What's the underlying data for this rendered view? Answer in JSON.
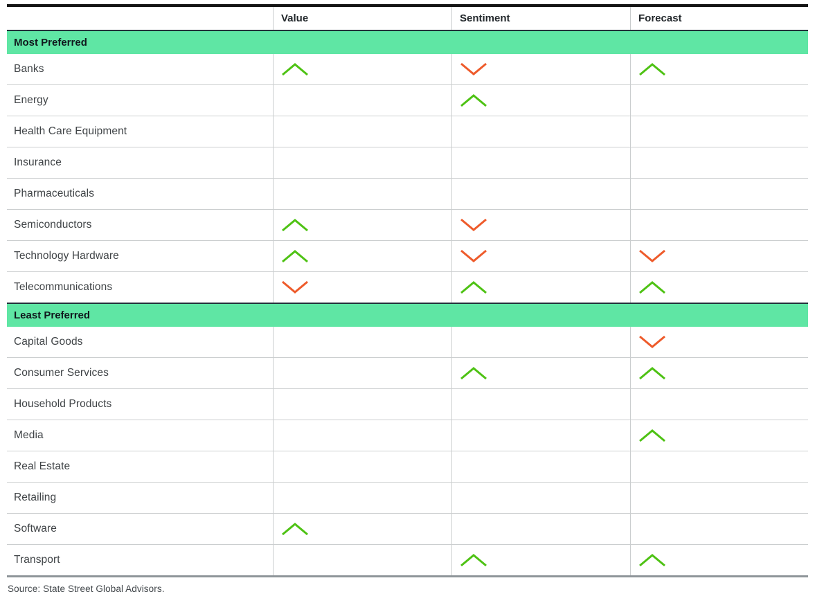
{
  "chart_data": {
    "type": "table",
    "columns": [
      "Value",
      "Sentiment",
      "Forecast"
    ],
    "legend_note": "up = green upward chevron, down = orange downward chevron, null = empty cell",
    "sections": [
      {
        "label": "Most Preferred",
        "rows": [
          {
            "name": "Banks",
            "value": "up",
            "sentiment": "down",
            "forecast": "up"
          },
          {
            "name": "Energy",
            "value": null,
            "sentiment": "up",
            "forecast": null
          },
          {
            "name": "Health Care Equipment",
            "value": null,
            "sentiment": null,
            "forecast": null
          },
          {
            "name": "Insurance",
            "value": null,
            "sentiment": null,
            "forecast": null
          },
          {
            "name": "Pharmaceuticals",
            "value": null,
            "sentiment": null,
            "forecast": null
          },
          {
            "name": "Semiconductors",
            "value": "up",
            "sentiment": "down",
            "forecast": null
          },
          {
            "name": "Technology Hardware",
            "value": "up",
            "sentiment": "down",
            "forecast": "down"
          },
          {
            "name": "Telecommunications",
            "value": "down",
            "sentiment": "up",
            "forecast": "up"
          }
        ]
      },
      {
        "label": "Least Preferred",
        "rows": [
          {
            "name": "Capital Goods",
            "value": null,
            "sentiment": null,
            "forecast": "down"
          },
          {
            "name": "Consumer Services",
            "value": null,
            "sentiment": "up",
            "forecast": "up"
          },
          {
            "name": "Household Products",
            "value": null,
            "sentiment": null,
            "forecast": null
          },
          {
            "name": "Media",
            "value": null,
            "sentiment": null,
            "forecast": "up"
          },
          {
            "name": "Real Estate",
            "value": null,
            "sentiment": null,
            "forecast": null
          },
          {
            "name": "Retailing",
            "value": null,
            "sentiment": null,
            "forecast": null
          },
          {
            "name": "Software",
            "value": "up",
            "sentiment": null,
            "forecast": null
          },
          {
            "name": "Transport",
            "value": null,
            "sentiment": "up",
            "forecast": "up"
          }
        ]
      }
    ]
  },
  "source": "Source: State Street Global Advisors.",
  "colors": {
    "up_chevron": "#4ec214",
    "down_chevron": "#ee5b2b",
    "banner_background": "#5fe6a4",
    "top_rule": "#141414",
    "bottom_rule": "#8e9599"
  }
}
